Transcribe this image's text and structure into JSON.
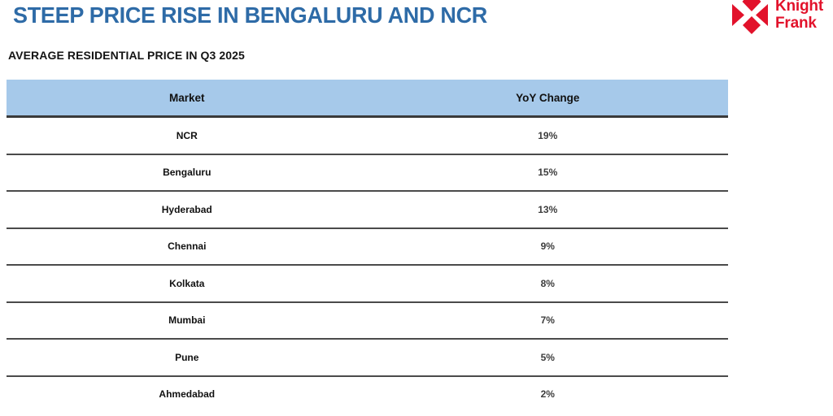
{
  "page": {
    "title": "STEEP PRICE RISE IN BENGALURU AND NCR",
    "subtitle": "AVERAGE RESIDENTIAL PRICE IN Q3 2025"
  },
  "logo": {
    "brand_line1": "Knight",
    "brand_line2": "Frank",
    "mark_icon": "knight-frank-diamond-mark",
    "brand_red": "#E2122B"
  },
  "colors": {
    "title_blue": "#2E6BA7",
    "table_header_bg": "#A6C9EA",
    "separator_dark": "#3A3A3A",
    "brand_red": "#E2122B"
  },
  "table": {
    "columns": [
      "Market",
      "YoY Change"
    ],
    "rows": [
      {
        "market": "NCR",
        "yoy_change": "19%"
      },
      {
        "market": "Bengaluru",
        "yoy_change": "15%"
      },
      {
        "market": "Hyderabad",
        "yoy_change": "13%"
      },
      {
        "market": "Chennai",
        "yoy_change": "9%"
      },
      {
        "market": "Kolkata",
        "yoy_change": "8%"
      },
      {
        "market": "Mumbai",
        "yoy_change": "7%"
      },
      {
        "market": "Pune",
        "yoy_change": "5%"
      },
      {
        "market": "Ahmedabad",
        "yoy_change": "2%"
      }
    ]
  },
  "chart_data": {
    "type": "table",
    "title": "STEEP PRICE RISE IN BENGALURU AND NCR",
    "subtitle": "AVERAGE RESIDENTIAL PRICE IN Q3 2025",
    "columns": [
      "Market",
      "YoY Change"
    ],
    "categories": [
      "NCR",
      "Bengaluru",
      "Hyderabad",
      "Chennai",
      "Kolkata",
      "Mumbai",
      "Pune",
      "Ahmedabad"
    ],
    "values_pct": [
      19,
      15,
      13,
      9,
      8,
      7,
      5,
      2
    ],
    "value_unit": "%",
    "layout": "two-column centered table, horizontal separators only, light blue header band"
  }
}
